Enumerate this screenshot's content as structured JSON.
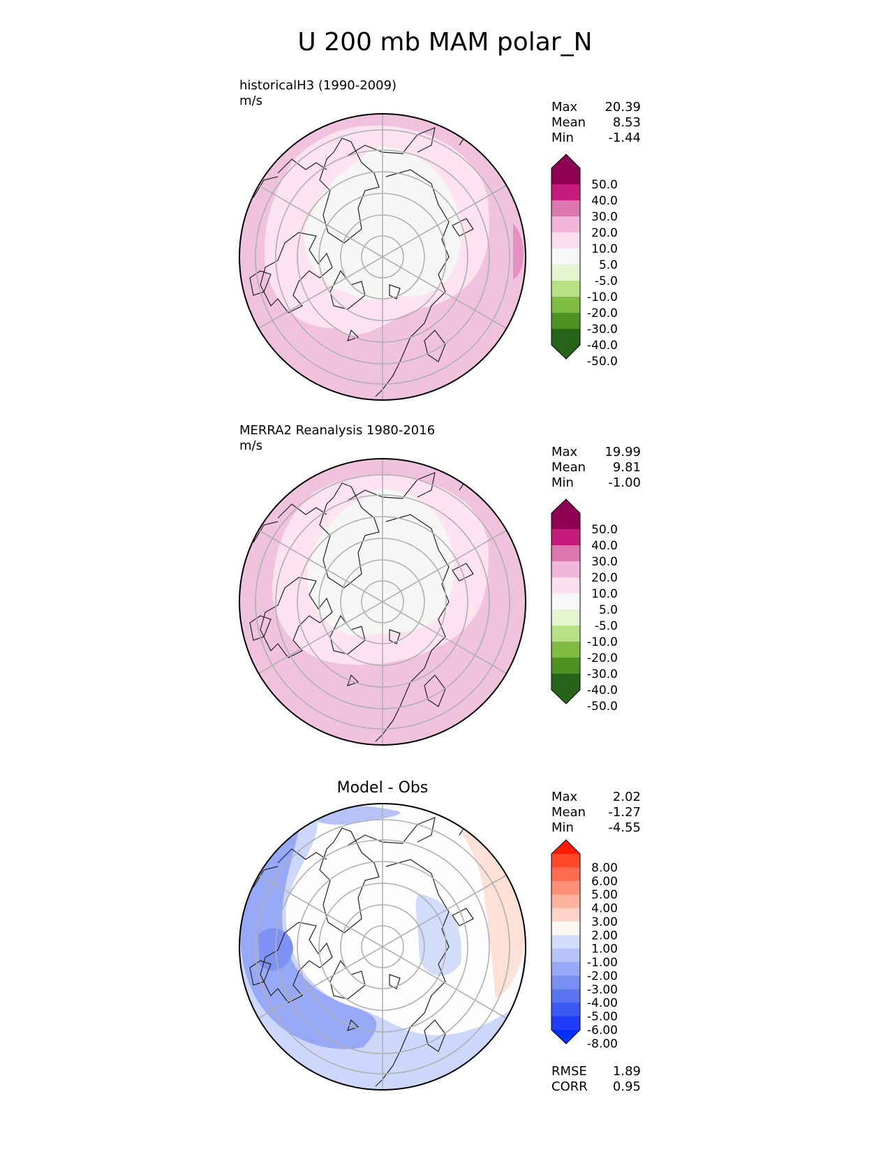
{
  "title": "U 200 mb MAM polar_N",
  "panels": [
    {
      "label_line1": "historicalH3 (1990-2009)",
      "label_line2": "m/s",
      "stats": [
        {
          "name": "Max",
          "value": "20.39"
        },
        {
          "name": "Mean",
          "value": "8.53"
        },
        {
          "name": "Min",
          "value": "-1.44"
        }
      ],
      "colorbar": {
        "labels": [
          "50.0",
          "40.0",
          "30.0",
          "20.0",
          "10.0",
          "5.0",
          "-5.0",
          "-10.0",
          "-20.0",
          "-30.0",
          "-40.0",
          "-50.0"
        ],
        "colors": [
          "#8e0152",
          "#c51b7d",
          "#de77ae",
          "#f1b6da",
          "#fde0ef",
          "#f7f7f7",
          "#e6f5d0",
          "#b8e186",
          "#7fbc41",
          "#4d9221",
          "#276419"
        ]
      }
    },
    {
      "label_line1": "MERRA2 Reanalysis 1980-2016",
      "label_line2": "m/s",
      "stats": [
        {
          "name": "Max",
          "value": "19.99"
        },
        {
          "name": "Mean",
          "value": "9.81"
        },
        {
          "name": "Min",
          "value": "-1.00"
        }
      ],
      "colorbar": {
        "labels": [
          "50.0",
          "40.0",
          "30.0",
          "20.0",
          "10.0",
          "5.0",
          "-5.0",
          "-10.0",
          "-20.0",
          "-30.0",
          "-40.0",
          "-50.0"
        ]
      }
    },
    {
      "center_title": "Model - Obs",
      "stats": [
        {
          "name": "Max",
          "value": "2.02"
        },
        {
          "name": "Mean",
          "value": "-1.27"
        },
        {
          "name": "Min",
          "value": "-4.55"
        }
      ],
      "colorbar": {
        "labels": [
          "8.00",
          "6.00",
          "5.00",
          "4.00",
          "3.00",
          "2.00",
          "1.00",
          "-1.00",
          "-2.00",
          "-3.00",
          "-4.00",
          "-5.00",
          "-6.00",
          "-8.00"
        ],
        "colors": [
          "#ff1a00",
          "#ff4a2a",
          "#ff6b50",
          "#ff9075",
          "#ffb29e",
          "#ffd4c8",
          "#fdf7f5",
          "#d4dcfb",
          "#b7c3f8",
          "#98a9f5",
          "#7890f2",
          "#5874ef",
          "#3a5af4",
          "#1f3dfb",
          "#0030ff"
        ]
      },
      "extra_stats": [
        {
          "name": "RMSE",
          "value": "1.89"
        },
        {
          "name": "CORR",
          "value": "0.95"
        }
      ]
    }
  ]
}
